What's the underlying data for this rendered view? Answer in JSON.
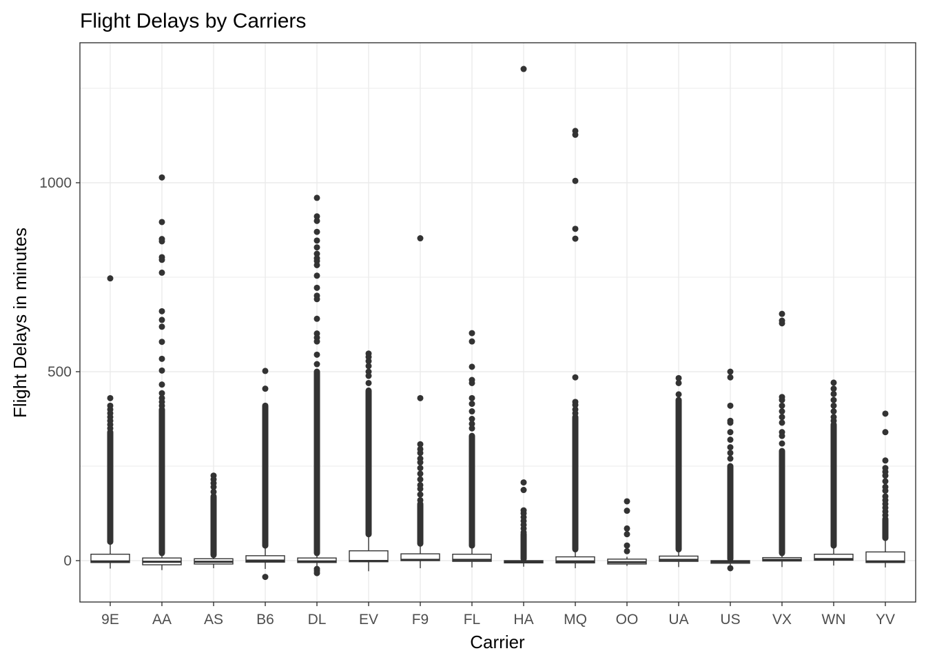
{
  "chart_data": {
    "type": "boxplot",
    "title": "Flight Delays by Carriers",
    "xlabel": "Carrier",
    "ylabel": "Flight Delays in minutes",
    "ylim": [
      -110,
      1365
    ],
    "yticks": [
      0,
      500,
      1000
    ],
    "grid": true,
    "legend": "none",
    "colors": {
      "box_fill": "#ffffff",
      "box_line": "#333333",
      "outlier": "#333333",
      "grid": "#ebebeb",
      "panel_border": "#333333"
    },
    "categories": [
      "9E",
      "AA",
      "AS",
      "B6",
      "DL",
      "EV",
      "F9",
      "FL",
      "HA",
      "MQ",
      "OO",
      "UA",
      "US",
      "VX",
      "WN",
      "YV"
    ],
    "boxes": [
      {
        "carrier": "9E",
        "q1": -5,
        "median": -2,
        "q3": 17,
        "whisker_low": -21,
        "whisker_high": 50,
        "outlier_range": [
          50,
          340
        ],
        "outliers": [
          747,
          430,
          410,
          400,
          390,
          380,
          370,
          360,
          350
        ]
      },
      {
        "carrier": "AA",
        "q1": -11,
        "median": -3,
        "q3": 7,
        "whisker_low": -25,
        "whisker_high": 20,
        "outlier_range": [
          20,
          400
        ],
        "outliers": [
          1014,
          896,
          851,
          845,
          803,
          796,
          762,
          660,
          637,
          619,
          579,
          534,
          503,
          466,
          443,
          430,
          420,
          410
        ]
      },
      {
        "carrier": "AS",
        "q1": -9,
        "median": -3,
        "q3": 5,
        "whisker_low": -20,
        "whisker_high": 15,
        "outlier_range": [
          15,
          170
        ],
        "outliers": [
          225,
          215,
          205,
          195,
          182
        ]
      },
      {
        "carrier": "B6",
        "q1": -4,
        "median": 0,
        "q3": 13,
        "whisker_low": -22,
        "whisker_high": 40,
        "outlier_range": [
          40,
          410
        ],
        "outliers": [
          502,
          455,
          -43
        ]
      },
      {
        "carrier": "DL",
        "q1": -5,
        "median": -2,
        "q3": 7,
        "whisker_low": -33,
        "whisker_high": 20,
        "outlier_range": [
          20,
          500
        ],
        "outliers": [
          960,
          911,
          899,
          870,
          847,
          829,
          812,
          800,
          793,
          782,
          754,
          722,
          701,
          692,
          640,
          601,
          590,
          580,
          545,
          520,
          -22,
          -27,
          -33
        ]
      },
      {
        "carrier": "EV",
        "q1": -3,
        "median": -1,
        "q3": 26,
        "whisker_low": -28,
        "whisker_high": 70,
        "outlier_range": [
          70,
          450
        ],
        "outliers": [
          548,
          539,
          528,
          515,
          500,
          489,
          470
        ]
      },
      {
        "carrier": "F9",
        "q1": 0,
        "median": 2,
        "q3": 18,
        "whisker_low": -20,
        "whisker_high": 45,
        "outlier_range": [
          45,
          150
        ],
        "outliers": [
          853,
          430,
          308,
          295,
          285,
          270,
          260,
          245,
          230,
          215,
          200,
          190,
          175,
          160
        ]
      },
      {
        "carrier": "FL",
        "q1": -2,
        "median": 2,
        "q3": 17,
        "whisker_low": -18,
        "whisker_high": 40,
        "outlier_range": [
          40,
          330
        ],
        "outliers": [
          602,
          580,
          513,
          478,
          470,
          430,
          415,
          395,
          375,
          362,
          350
        ]
      },
      {
        "carrier": "HA",
        "q1": -6,
        "median": -3,
        "q3": 0,
        "whisker_low": -16,
        "whisker_high": 5,
        "outlier_range": [
          5,
          70
        ],
        "outliers": [
          1301,
          207,
          187,
          133,
          125,
          115,
          105,
          95,
          85,
          75
        ]
      },
      {
        "carrier": "MQ",
        "q1": -6,
        "median": -2,
        "q3": 10,
        "whisker_low": -20,
        "whisker_high": 30,
        "outlier_range": [
          30,
          380
        ],
        "outliers": [
          1137,
          1127,
          1005,
          878,
          852,
          485,
          420,
          412,
          400,
          390
        ]
      },
      {
        "carrier": "OO",
        "q1": -9,
        "median": -4,
        "q3": 4,
        "whisker_low": -14,
        "whisker_high": 10,
        "outlier_range": [
          10,
          10
        ],
        "outliers": [
          157,
          132,
          85,
          70,
          40,
          25
        ]
      },
      {
        "carrier": "UA",
        "q1": -2,
        "median": 2,
        "q3": 12,
        "whisker_low": -17,
        "whisker_high": 30,
        "outlier_range": [
          30,
          425
        ],
        "outliers": [
          483,
          470,
          440
        ]
      },
      {
        "carrier": "US",
        "q1": -7,
        "median": -3,
        "q3": 0,
        "whisker_low": -20,
        "whisker_high": 5,
        "outlier_range": [
          5,
          250
        ],
        "outliers": [
          500,
          485,
          410,
          370,
          365,
          340,
          320,
          300,
          285,
          270,
          -20
        ]
      },
      {
        "carrier": "VX",
        "q1": -1,
        "median": 2,
        "q3": 8,
        "whisker_low": -17,
        "whisker_high": 20,
        "outlier_range": [
          20,
          290
        ],
        "outliers": [
          653,
          635,
          628,
          433,
          425,
          410,
          395,
          380,
          365,
          340,
          330,
          310
        ]
      },
      {
        "carrier": "WN",
        "q1": 1,
        "median": 4,
        "q3": 17,
        "whisker_low": -13,
        "whisker_high": 40,
        "outlier_range": [
          40,
          360
        ],
        "outliers": [
          471,
          455,
          441,
          425,
          410,
          395,
          380,
          370
        ]
      },
      {
        "carrier": "YV",
        "q1": -5,
        "median": -2,
        "q3": 23,
        "whisker_low": -18,
        "whisker_high": 60,
        "outlier_range": [
          60,
          110
        ],
        "outliers": [
          389,
          340,
          265,
          245,
          235,
          225,
          210,
          195,
          185,
          170,
          160,
          150,
          140,
          130,
          120
        ]
      }
    ]
  }
}
